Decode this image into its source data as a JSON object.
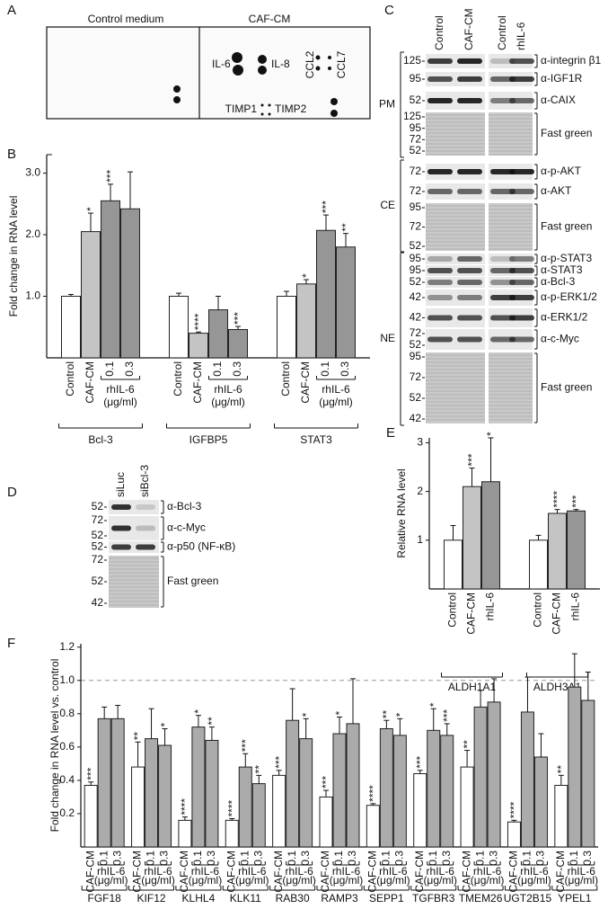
{
  "panel_a": {
    "label": "A",
    "columns": [
      "Control medium",
      "CAF-CM"
    ],
    "spots": [
      "IL-6",
      "IL-8",
      "CCL2",
      "CCL7",
      "TIMP1",
      "TIMP2"
    ]
  },
  "panel_c": {
    "label": "C",
    "lanes": [
      "Control",
      "CAF-CM",
      "Control",
      "rhIL-6"
    ],
    "groups": [
      "PM",
      "CE",
      "NE"
    ],
    "rows": [
      {
        "mw": [
          125
        ],
        "antibody": "α-integrin β1"
      },
      {
        "mw": [
          95
        ],
        "antibody": "α-IGF1R"
      },
      {
        "mw": [
          52
        ],
        "antibody": "α-CAIX"
      },
      {
        "mw": [
          125,
          95,
          72,
          52
        ],
        "antibody": "Fast green"
      },
      {
        "mw": [
          72
        ],
        "antibody": "α-p-AKT"
      },
      {
        "mw": [
          72
        ],
        "antibody": "α-AKT"
      },
      {
        "mw": [
          95,
          72,
          52
        ],
        "antibody": "Fast green"
      },
      {
        "mw": [
          95
        ],
        "antibody": "α-p-STAT3"
      },
      {
        "mw": [
          95
        ],
        "antibody": "α-STAT3"
      },
      {
        "mw": [
          52
        ],
        "antibody": "α-Bcl-3"
      },
      {
        "mw": [
          42
        ],
        "antibody": "α-p-ERK1/2"
      },
      {
        "mw": [
          42
        ],
        "antibody": "α-ERK1/2"
      },
      {
        "mw": [
          72,
          52
        ],
        "antibody": "α-c-Myc"
      },
      {
        "mw": [
          95,
          72,
          52,
          42
        ],
        "antibody": "Fast green"
      }
    ]
  },
  "panel_d": {
    "label": "D",
    "lanes": [
      "siLuc",
      "siBcl-3"
    ],
    "rows": [
      {
        "mw": [
          52
        ],
        "antibody": "α-Bcl-3"
      },
      {
        "mw": [
          72,
          52
        ],
        "antibody": "α-c-Myc"
      },
      {
        "mw": [
          52
        ],
        "antibody": "α-p50 (NF-κB)"
      },
      {
        "mw": [
          72,
          52,
          42
        ],
        "antibody": "Fast green"
      }
    ]
  },
  "chart_data": [
    {
      "type": "bar",
      "panel_label": "B",
      "y_label": "Fold change in RNA level",
      "categories": [
        "Bcl-3",
        "IGFBP5",
        "STAT3"
      ],
      "bar_labels": [
        "Control",
        "CAF-CM",
        "0.1",
        "0.3"
      ],
      "sub_label": "rhIL-6",
      "sub_unit": "(μg/ml)",
      "ylim": [
        0,
        3.3
      ],
      "yticks": [
        {
          "value": 1,
          "label": "1.0"
        },
        {
          "value": 2,
          "label": "2.0"
        },
        {
          "value": 3,
          "label": "3.0"
        }
      ],
      "series": [
        {
          "color": "#ffffff",
          "values": [
            1.0,
            1.0,
            1.0
          ],
          "errors": [
            0.03,
            0.05,
            0.08
          ],
          "stars": [
            null,
            null,
            null
          ]
        },
        {
          "color": "#c4c4c4",
          "values": [
            2.05,
            0.4,
            1.2
          ],
          "errors": [
            0.3,
            0.02,
            0.07
          ],
          "stars": [
            "*",
            "****",
            "*"
          ]
        },
        {
          "color": "#969696",
          "values": [
            2.55,
            0.78,
            2.07
          ],
          "errors": [
            0.27,
            0.22,
            0.25
          ],
          "stars": [
            "***",
            null,
            "***"
          ]
        },
        {
          "color": "#969696",
          "values": [
            2.42,
            0.46,
            1.8
          ],
          "errors": [
            0.6,
            0.05,
            0.22
          ],
          "stars": [
            null,
            "***",
            "**"
          ]
        }
      ]
    },
    {
      "type": "bar",
      "panel_label": "E",
      "y_label": "Relative RNA level",
      "categories": [
        "ALDH1A1",
        "ALDH3A1"
      ],
      "bar_labels": [
        "Control",
        "CAF-CM",
        "rhIL-6"
      ],
      "ylim": [
        0,
        3.1
      ],
      "yticks": [
        1,
        2,
        3
      ],
      "series": [
        {
          "color": "#ffffff",
          "values": [
            1.0,
            1.0
          ],
          "errors": [
            0.3,
            0.1
          ],
          "stars": [
            null,
            null
          ]
        },
        {
          "color": "#c4c4c4",
          "values": [
            2.1,
            1.55
          ],
          "errors": [
            0.38,
            0.08
          ],
          "stars": [
            "***",
            "****"
          ]
        },
        {
          "color": "#969696",
          "values": [
            2.2,
            1.6
          ],
          "errors": [
            0.9,
            0.03
          ],
          "stars": [
            "*",
            "***"
          ]
        }
      ]
    },
    {
      "type": "bar",
      "panel_label": "F",
      "y_label": "Fold change in RNA level vs. control",
      "categories": [
        "FGF18",
        "KIF12",
        "KLHL4",
        "KLK11",
        "RAB30",
        "RAMP3",
        "SEPP1",
        "TGFBR3",
        "TMEM26",
        "UGT2B15",
        "YPEL1"
      ],
      "bar_labels": [
        "CAF-CM",
        "0.1",
        "0.3"
      ],
      "sub_label": "rhIL-6",
      "sub_unit": "(μg/ml)",
      "ylim": [
        0,
        1.22
      ],
      "yticks": [
        0.2,
        0.4,
        0.6,
        0.8,
        {
          "value": 1,
          "label": "1.0"
        },
        1.2
      ],
      "reference_line": 1,
      "series": [
        {
          "color": "#ffffff",
          "values": [
            0.37,
            0.48,
            0.16,
            0.16,
            0.43,
            0.3,
            0.25,
            0.44,
            0.48,
            0.15,
            0.37
          ],
          "errors": [
            0.02,
            0.15,
            0.02,
            0.01,
            0.03,
            0.04,
            0.01,
            0.02,
            0.1,
            0.01,
            0.06
          ],
          "stars": [
            "***",
            "**",
            "****",
            "****",
            "***",
            "***",
            "****",
            "***",
            "**",
            "****",
            "**"
          ]
        },
        {
          "color": "#ababab",
          "values": [
            0.77,
            0.65,
            0.72,
            0.48,
            0.76,
            0.68,
            0.71,
            0.7,
            0.84,
            0.81,
            0.96
          ],
          "errors": [
            0.07,
            0.18,
            0.07,
            0.08,
            0.19,
            0.1,
            0.05,
            0.13,
            0.1,
            0.21,
            0.2
          ],
          "stars": [
            null,
            null,
            "*",
            "***",
            null,
            "*",
            "**",
            "*",
            null,
            null,
            null
          ]
        },
        {
          "color": "#ababab",
          "values": [
            0.77,
            0.61,
            0.64,
            0.38,
            0.65,
            0.74,
            0.67,
            0.67,
            0.87,
            0.54,
            0.88
          ],
          "errors": [
            0.08,
            0.1,
            0.08,
            0.05,
            0.12,
            0.27,
            0.1,
            0.07,
            0.14,
            0.14,
            0.17
          ],
          "stars": [
            null,
            "*",
            "**",
            "**",
            "*",
            null,
            "*",
            "***",
            null,
            null,
            null
          ]
        }
      ]
    }
  ]
}
